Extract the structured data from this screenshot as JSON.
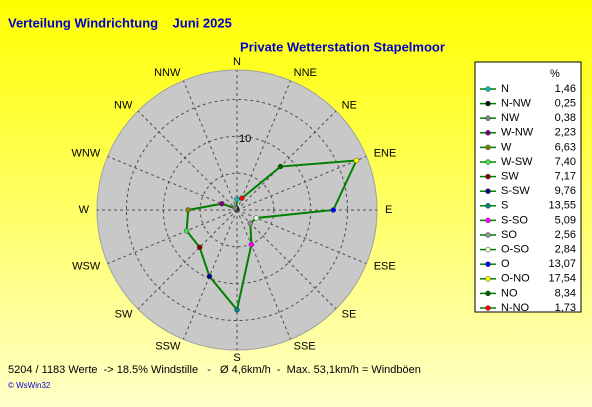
{
  "chart_data": {
    "type": "radar",
    "title": "Verteilung Windrichtung    Juni 2025",
    "subtitle": "Private Wetterstation Stapelmoor",
    "compass": [
      "N",
      "NNE",
      "NE",
      "ENE",
      "E",
      "ESE",
      "SE",
      "SSE",
      "S",
      "SSW",
      "SW",
      "WSW",
      "W",
      "WNW",
      "NW",
      "NNW"
    ],
    "legend_header": "%",
    "categories": [
      "N",
      "N-NW",
      "NW",
      "W-NW",
      "W",
      "W-SW",
      "SW",
      "S-SW",
      "S",
      "S-SO",
      "SO",
      "O-SO",
      "O",
      "O-NO",
      "NO",
      "N-NO"
    ],
    "values": [
      1.46,
      0.25,
      0.38,
      2.23,
      6.63,
      7.4,
      7.17,
      9.76,
      13.55,
      5.09,
      2.56,
      2.84,
      13.07,
      17.54,
      8.34,
      1.73
    ],
    "value_labels": [
      "1,46",
      "0,25",
      "0,38",
      "2,23",
      "6,63",
      "7,40",
      "7,17",
      "9,76",
      "13,55",
      "5,09",
      "2,56",
      "2,84",
      "13,07",
      "17,54",
      "8,34",
      "1,73"
    ],
    "marker_colors": [
      "#00c0c0",
      "#000000",
      "#808080",
      "#800080",
      "#808000",
      "#40e040",
      "#800000",
      "#000080",
      "#008080",
      "#ff00ff",
      "#909090",
      "#e0ffe0",
      "#0000ff",
      "#ffff00",
      "#006000",
      "#ff0000"
    ],
    "line_color": "#008000",
    "rlim": [
      0,
      19
    ],
    "rgrid": [
      5,
      10,
      15
    ],
    "rticks": [
      10
    ],
    "footer": "5204 / 1183 Werte  -> 18.5% Windstille   -   Ø 4,6km/h  -  Max. 53,1km/h = Windböen",
    "credit": "© WsWin32"
  }
}
